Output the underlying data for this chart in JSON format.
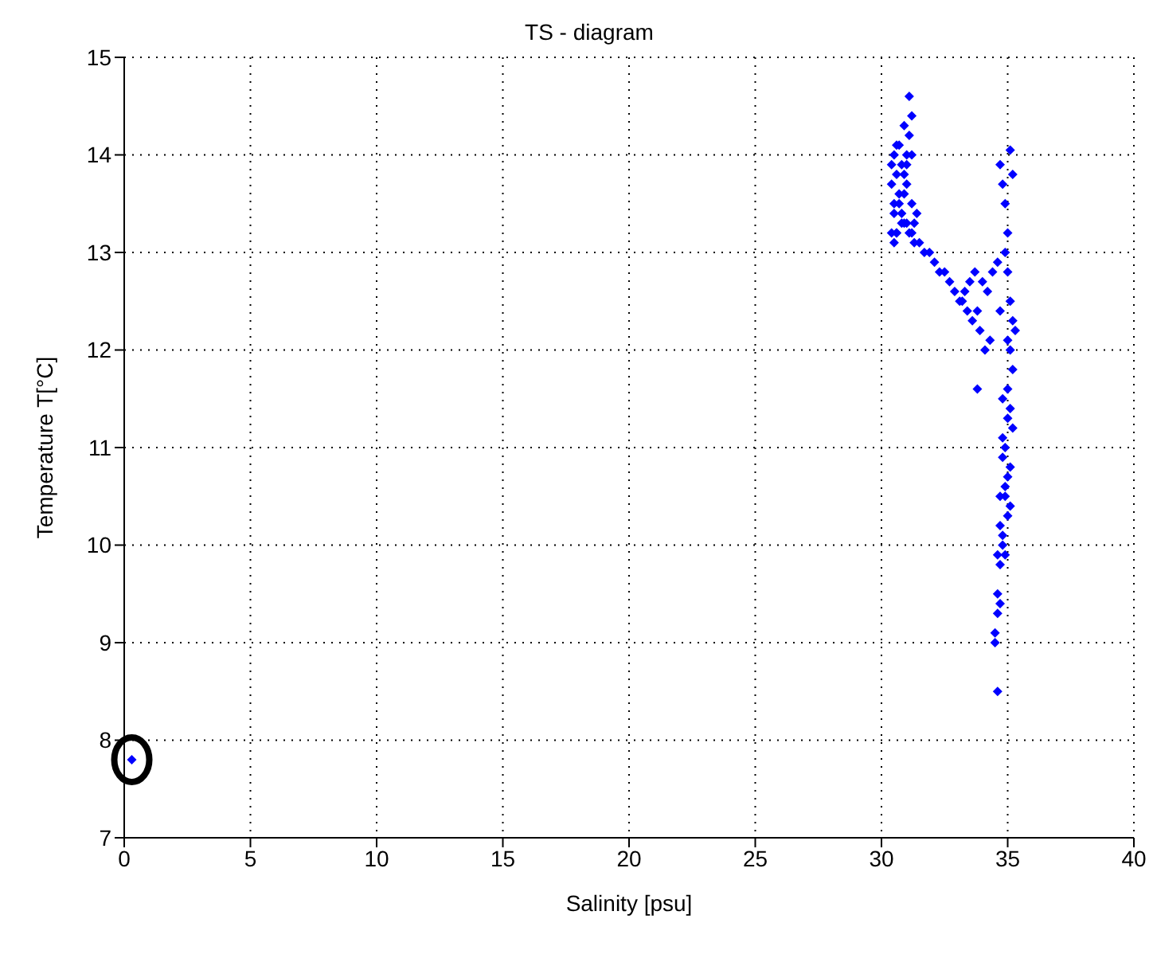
{
  "chart_data": {
    "type": "scatter",
    "title": "TS - diagram",
    "xlabel": "Salinity [psu]",
    "ylabel": "Temperature T[°C]",
    "xlim": [
      0,
      40
    ],
    "xticks": [
      0,
      5,
      10,
      15,
      20,
      25,
      30,
      35,
      40
    ],
    "ylim": [
      7,
      15
    ],
    "yticks": [
      7,
      8,
      9,
      10,
      11,
      12,
      13,
      14,
      15
    ],
    "grid": true,
    "marker": "diamond",
    "series": [
      {
        "color": "#0000ff",
        "x": [
          0.3,
          30.4,
          30.5,
          30.6,
          30.7,
          30.8,
          30.9,
          31.0,
          31.1,
          31.2,
          30.5,
          30.6,
          30.8,
          31.0,
          31.2,
          30.4,
          30.6,
          30.9,
          31.1,
          31.3,
          30.5,
          30.7,
          30.9,
          31.0,
          31.2,
          30.4,
          30.6,
          30.8,
          31.0,
          31.2,
          31.4,
          30.5,
          30.7,
          30.9,
          31.1,
          31.3,
          31.5,
          31.7,
          31.9,
          32.1,
          32.3,
          32.5,
          32.7,
          32.9,
          33.1,
          33.3,
          33.5,
          33.7,
          33.2,
          33.4,
          33.6,
          33.8,
          34.0,
          34.2,
          34.4,
          34.6,
          33.9,
          34.1,
          34.3,
          33.8,
          34.7,
          34.8,
          34.9,
          35.0,
          35.1,
          35.2,
          34.9,
          35.0,
          35.1,
          35.2,
          35.0,
          35.1,
          35.2,
          35.3,
          35.0,
          35.1,
          35.2,
          34.9,
          35.0,
          35.1,
          34.8,
          34.9,
          35.0,
          35.1,
          34.7,
          34.8,
          34.9,
          35.0,
          34.6,
          34.7,
          34.8,
          34.9,
          34.7,
          34.8,
          34.6,
          34.7,
          34.8,
          34.7,
          34.6,
          34.5,
          34.5,
          34.6
        ],
        "values": [
          7.8,
          13.2,
          13.5,
          13.8,
          14.1,
          13.3,
          13.6,
          13.9,
          14.2,
          14.4,
          14.0,
          13.2,
          13.4,
          13.7,
          14.0,
          13.9,
          14.1,
          14.3,
          14.6,
          13.3,
          13.1,
          13.6,
          13.8,
          13.3,
          13.5,
          13.7,
          13.2,
          13.9,
          14.0,
          13.2,
          13.4,
          13.4,
          13.5,
          13.3,
          13.2,
          13.1,
          13.1,
          13.0,
          13.0,
          12.9,
          12.8,
          12.8,
          12.7,
          12.6,
          12.5,
          12.6,
          12.7,
          12.8,
          12.5,
          12.4,
          12.3,
          12.4,
          12.7,
          12.6,
          12.8,
          12.9,
          12.2,
          12.0,
          12.1,
          11.6,
          13.9,
          13.7,
          13.5,
          13.2,
          14.05,
          13.8,
          13.0,
          12.8,
          12.5,
          12.3,
          12.1,
          12.0,
          11.8,
          12.2,
          11.6,
          11.4,
          11.2,
          11.0,
          11.3,
          10.8,
          10.9,
          10.5,
          10.7,
          10.4,
          10.2,
          10.0,
          10.6,
          10.3,
          9.9,
          9.8,
          10.1,
          9.9,
          10.5,
          11.1,
          9.5,
          9.4,
          11.5,
          12.4,
          9.3,
          9.1,
          9.0,
          8.5
        ]
      }
    ],
    "legend": false
  }
}
